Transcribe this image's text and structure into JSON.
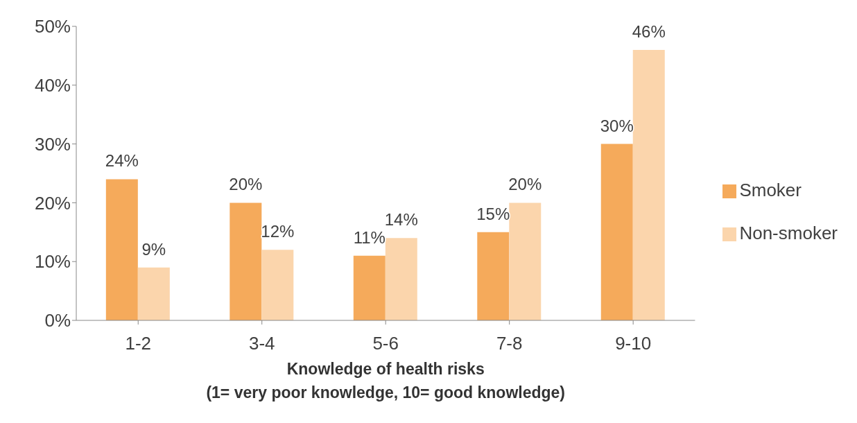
{
  "chart_data": {
    "type": "bar",
    "xlabel": "Knowledge of health risks\n(1= very poor knowledge, 10= good knowledge)",
    "categories": [
      "1-2",
      "3-4",
      "5-6",
      "7-8",
      "9-10"
    ],
    "series": [
      {
        "name": "Smoker",
        "color": "#f5aa5b",
        "values": [
          24,
          20,
          11,
          15,
          30
        ],
        "value_labels": [
          "24%",
          "20%",
          "11%",
          "15%",
          "30%"
        ]
      },
      {
        "name": "Non-smoker",
        "color": "#fbd5ac",
        "values": [
          9,
          12,
          14,
          20,
          46
        ],
        "value_labels": [
          "9%",
          "12%",
          "14%",
          "20%",
          "46%"
        ]
      }
    ],
    "ylim": [
      0,
      50
    ],
    "yticks": [
      {
        "value": 0,
        "label": "0%"
      },
      {
        "value": 10,
        "label": "10%"
      },
      {
        "value": 20,
        "label": "20%"
      },
      {
        "value": 30,
        "label": "30%"
      },
      {
        "value": 40,
        "label": "40%"
      },
      {
        "value": 50,
        "label": "50%"
      }
    ],
    "grid": false,
    "legend": "right"
  }
}
